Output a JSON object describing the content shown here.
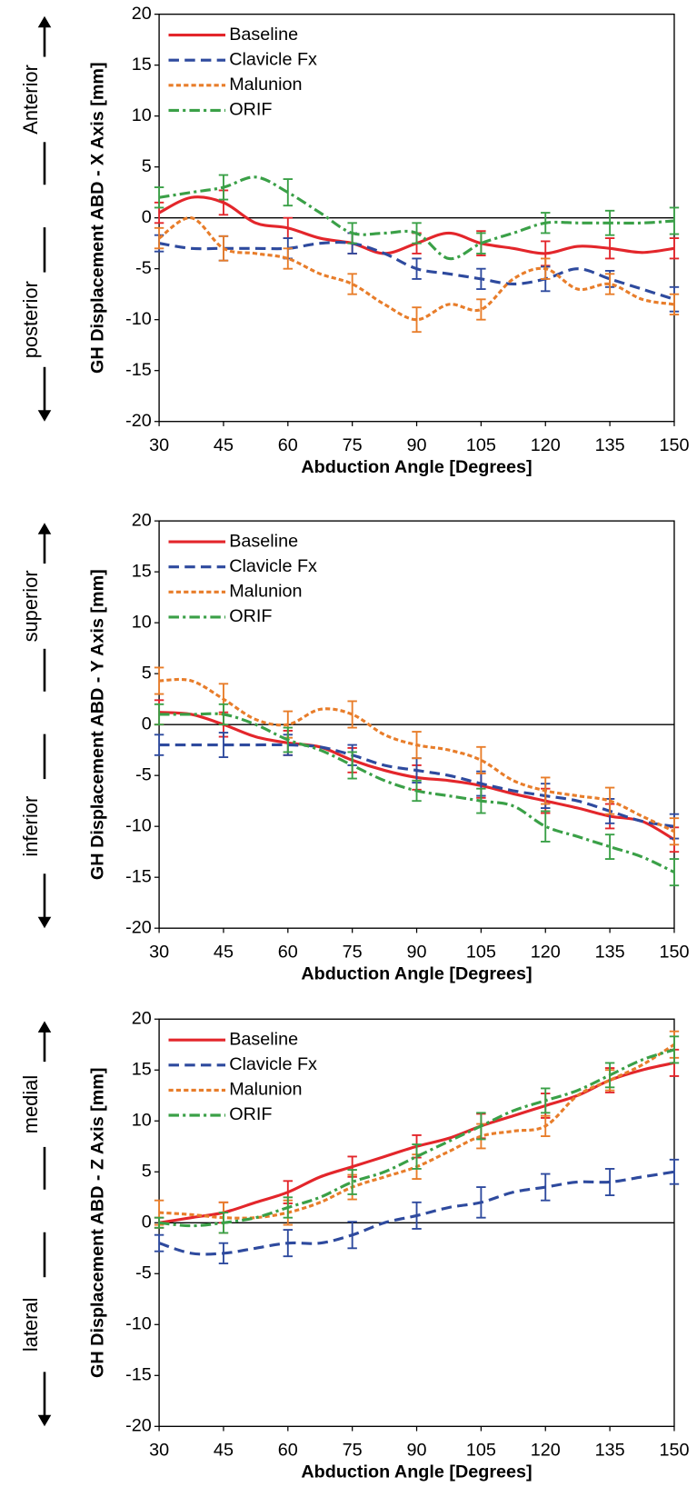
{
  "chart_data": [
    {
      "type": "line",
      "y_label": "GH Displacement ABD - X Axis [mm]",
      "x_label": "Abduction Angle [Degrees]",
      "direction_labels": {
        "positive": "Anterior",
        "negative": "posterior"
      },
      "xlim": [
        30,
        150
      ],
      "xticks": [
        30,
        45,
        60,
        75,
        90,
        105,
        120,
        135,
        150
      ],
      "ylim": [
        -20,
        20
      ],
      "yticks": [
        -20,
        -15,
        -10,
        -5,
        0,
        5,
        10,
        15,
        20
      ],
      "legend": "upper left",
      "x": [
        30,
        37.5,
        45,
        52.5,
        60,
        67.5,
        75,
        82.5,
        90,
        97.5,
        105,
        112.5,
        120,
        127.5,
        135,
        142.5,
        150
      ],
      "series": [
        {
          "name": "Baseline",
          "color": "#e3262b",
          "dash": "solid",
          "values": [
            0.5,
            2,
            1.5,
            -0.5,
            -1,
            -2,
            -2.5,
            -3.5,
            -2.5,
            -1.5,
            -2.5,
            -3,
            -3.5,
            -2.8,
            -3,
            -3.4,
            -3
          ],
          "errors": [
            1,
            null,
            1.2,
            null,
            1,
            null,
            1,
            null,
            1,
            null,
            1.2,
            null,
            1.2,
            null,
            1,
            null,
            1
          ]
        },
        {
          "name": "Clavicle Fx",
          "color": "#2e4a9e",
          "dash": "dashed",
          "values": [
            -2.5,
            -3,
            -3,
            -3,
            -3,
            -2.5,
            -2.5,
            -3.5,
            -5,
            -5.5,
            -6,
            -6.5,
            -6,
            -5,
            -6,
            -7,
            -8
          ],
          "errors": [
            0.8,
            null,
            1.2,
            null,
            1,
            null,
            1,
            null,
            1,
            null,
            1,
            null,
            1.2,
            null,
            0.8,
            null,
            1.2
          ]
        },
        {
          "name": "Malunion",
          "color": "#e87d2a",
          "dash": "dotted",
          "values": [
            -2,
            0,
            -3,
            -3.5,
            -4,
            -5.5,
            -6.5,
            -8.5,
            -10,
            -8.5,
            -9,
            -6,
            -5,
            -7,
            -6.5,
            -8,
            -8.5
          ],
          "errors": [
            1,
            null,
            1.2,
            null,
            1,
            null,
            1,
            null,
            1.2,
            null,
            1,
            null,
            1,
            null,
            1,
            null,
            1
          ]
        },
        {
          "name": "ORIF",
          "color": "#3aa047",
          "dash": "dashdot",
          "values": [
            2,
            2.5,
            3,
            4,
            2.5,
            0.5,
            -1.5,
            -1.5,
            -1.5,
            -4,
            -2.5,
            -1.5,
            -0.5,
            -0.5,
            -0.5,
            -0.5,
            -0.3
          ],
          "errors": [
            1,
            null,
            1.2,
            null,
            1.3,
            null,
            1,
            null,
            1,
            null,
            1,
            null,
            1,
            null,
            1.2,
            null,
            1.3
          ]
        }
      ]
    },
    {
      "type": "line",
      "y_label": "GH Displacement ABD - Y Axis [mm]",
      "x_label": "Abduction Angle [Degrees]",
      "direction_labels": {
        "positive": "superior",
        "negative": "inferior"
      },
      "xlim": [
        30,
        150
      ],
      "xticks": [
        30,
        45,
        60,
        75,
        90,
        105,
        120,
        135,
        150
      ],
      "ylim": [
        -20,
        20
      ],
      "yticks": [
        -20,
        -15,
        -10,
        -5,
        0,
        5,
        10,
        15,
        20
      ],
      "legend": "upper left",
      "x": [
        30,
        37.5,
        45,
        52.5,
        60,
        67.5,
        75,
        82.5,
        90,
        97.5,
        105,
        112.5,
        120,
        127.5,
        135,
        142.5,
        150
      ],
      "series": [
        {
          "name": "Baseline",
          "color": "#e3262b",
          "dash": "solid",
          "values": [
            1.2,
            1,
            0,
            -1.2,
            -1.8,
            -2.2,
            -3.5,
            -4.5,
            -5.2,
            -5.5,
            -6,
            -6.8,
            -7.5,
            -8.2,
            -9,
            -9.5,
            -11.3
          ],
          "errors": [
            1.2,
            null,
            1.2,
            null,
            1.2,
            null,
            1.2,
            null,
            1.2,
            null,
            1.2,
            null,
            1.2,
            null,
            1.2,
            null,
            1.2
          ]
        },
        {
          "name": "Clavicle Fx",
          "color": "#2e4a9e",
          "dash": "dashed",
          "values": [
            -2,
            -2,
            -2,
            -2,
            -2,
            -2.2,
            -3,
            -4,
            -4.5,
            -5,
            -5.8,
            -6.5,
            -7,
            -7.5,
            -8.5,
            -9.5,
            -10
          ],
          "errors": [
            1,
            null,
            1.2,
            null,
            1,
            null,
            1,
            null,
            1.2,
            null,
            1.2,
            null,
            1.2,
            null,
            1.2,
            null,
            1.2
          ]
        },
        {
          "name": "Malunion",
          "color": "#e87d2a",
          "dash": "dotted",
          "values": [
            4.3,
            4.3,
            2.5,
            0.5,
            0,
            1.5,
            1,
            -1,
            -2,
            -2.5,
            -3.5,
            -5.5,
            -6.5,
            -7,
            -7.5,
            -9,
            -10.5
          ],
          "errors": [
            1.3,
            null,
            1.5,
            null,
            1.3,
            null,
            1.3,
            null,
            1.3,
            null,
            1.3,
            null,
            1.3,
            null,
            1.3,
            null,
            1.3
          ]
        },
        {
          "name": "ORIF",
          "color": "#3aa047",
          "dash": "dashdot",
          "values": [
            1,
            1,
            1,
            0,
            -1.5,
            -2.5,
            -4,
            -5.5,
            -6.5,
            -7,
            -7.5,
            -8,
            -10,
            -11,
            -12,
            -13,
            -14.5
          ],
          "errors": [
            1,
            null,
            1,
            null,
            1.2,
            null,
            1.3,
            null,
            1,
            null,
            1.2,
            null,
            1.5,
            null,
            1.2,
            null,
            1.3
          ]
        }
      ]
    },
    {
      "type": "line",
      "y_label": "GH Displacement ABD - Z Axis [mm]",
      "x_label": "Abduction Angle [Degrees]",
      "direction_labels": {
        "positive": "medial",
        "negative": "lateral"
      },
      "xlim": [
        30,
        150
      ],
      "xticks": [
        30,
        45,
        60,
        75,
        90,
        105,
        120,
        135,
        150
      ],
      "ylim": [
        -20,
        20
      ],
      "yticks": [
        -20,
        -15,
        -10,
        -5,
        0,
        5,
        10,
        15,
        20
      ],
      "legend": "upper left",
      "x": [
        30,
        37.5,
        45,
        52.5,
        60,
        67.5,
        75,
        82.5,
        90,
        97.5,
        105,
        112.5,
        120,
        127.5,
        135,
        142.5,
        150
      ],
      "series": [
        {
          "name": "Baseline",
          "color": "#e3262b",
          "dash": "solid",
          "values": [
            0,
            0.5,
            1,
            2,
            3,
            4.5,
            5.5,
            6.5,
            7.5,
            8.3,
            9.5,
            10.5,
            11.5,
            12.5,
            14,
            15,
            15.7
          ],
          "errors": [
            0.5,
            null,
            1,
            null,
            1.1,
            null,
            1,
            null,
            1.1,
            null,
            1.2,
            null,
            1.2,
            null,
            1.2,
            null,
            1.3
          ]
        },
        {
          "name": "Clavicle Fx",
          "color": "#2e4a9e",
          "dash": "dashed",
          "values": [
            -2,
            -3,
            -3,
            -2.5,
            -2,
            -2,
            -1.2,
            0,
            0.7,
            1.5,
            2,
            3,
            3.5,
            4,
            4,
            4.5,
            5
          ],
          "errors": [
            0.8,
            null,
            1,
            null,
            1.3,
            null,
            1.3,
            null,
            1.3,
            null,
            1.5,
            null,
            1.3,
            null,
            1.3,
            null,
            1.2
          ]
        },
        {
          "name": "Malunion",
          "color": "#e87d2a",
          "dash": "dotted",
          "values": [
            1,
            0.8,
            0.5,
            0.5,
            1,
            2,
            3.5,
            4.5,
            5.5,
            7,
            8.5,
            9,
            9.5,
            12.5,
            14,
            15.5,
            17.5
          ],
          "errors": [
            1.2,
            null,
            1.5,
            null,
            1.2,
            null,
            1.2,
            null,
            1.2,
            null,
            1.2,
            null,
            1,
            null,
            1,
            null,
            1.3
          ]
        },
        {
          "name": "ORIF",
          "color": "#3aa047",
          "dash": "dashdot",
          "values": [
            0,
            -0.3,
            0,
            0.5,
            1.5,
            2.5,
            4,
            5,
            6.5,
            8,
            9.5,
            11,
            12,
            13,
            14.5,
            16,
            17
          ],
          "errors": [
            0.5,
            null,
            1,
            null,
            1,
            null,
            1.2,
            null,
            1.2,
            null,
            1.3,
            null,
            1.2,
            null,
            1.2,
            null,
            1.3
          ]
        }
      ]
    }
  ]
}
